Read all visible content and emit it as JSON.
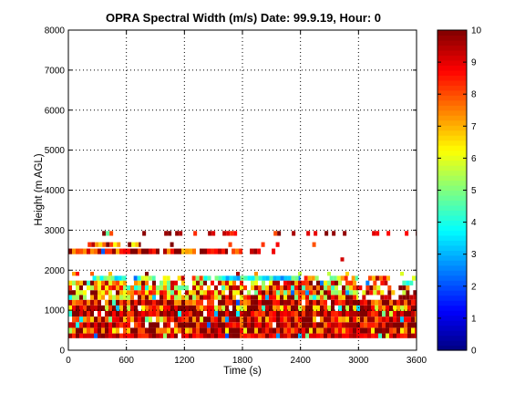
{
  "chart_data": {
    "type": "heatmap",
    "title": "OPRA Spectral Width (m/s)  Date: 99.9.19, Hour: 0",
    "xlabel": "Time (s)",
    "ylabel": "Height (m AGL)",
    "xlim": [
      0,
      3600
    ],
    "ylim": [
      0,
      8000
    ],
    "xticks": [
      "0",
      "600",
      "1200",
      "1800",
      "2400",
      "3000",
      "3600"
    ],
    "yticks": [
      "0",
      "1000",
      "2000",
      "3000",
      "4000",
      "5000",
      "6000",
      "7000",
      "8000"
    ],
    "grid": true,
    "colorbar": {
      "min": 0,
      "max": 10,
      "ticks": [
        "0",
        "1",
        "2",
        "3",
        "4",
        "5",
        "6",
        "7",
        "8",
        "9",
        "10"
      ],
      "colormap": "jet"
    },
    "bands": [
      {
        "y0": 300,
        "y1": 420,
        "x0": 0,
        "x1": 3600,
        "value": 9.3,
        "density": 0.97,
        "range": 1.2
      },
      {
        "y0": 420,
        "y1": 560,
        "x0": 0,
        "x1": 3600,
        "value": 8.8,
        "density": 0.96,
        "range": 3.0
      },
      {
        "y0": 560,
        "y1": 700,
        "x0": 0,
        "x1": 3600,
        "value": 9.2,
        "density": 0.97,
        "range": 1.6
      },
      {
        "y0": 700,
        "y1": 840,
        "x0": 0,
        "x1": 3600,
        "value": 9.0,
        "density": 0.96,
        "range": 2.4
      },
      {
        "y0": 840,
        "y1": 980,
        "x0": 0,
        "x1": 3600,
        "value": 9.3,
        "density": 0.97,
        "range": 1.4
      },
      {
        "y0": 980,
        "y1": 1120,
        "x0": 0,
        "x1": 3600,
        "value": 8.7,
        "density": 0.95,
        "range": 3.2
      },
      {
        "y0": 1120,
        "y1": 1260,
        "x0": 0,
        "x1": 3600,
        "value": 9.1,
        "density": 0.95,
        "range": 2.0
      },
      {
        "y0": 1260,
        "y1": 1380,
        "x0": 0,
        "x1": 3000,
        "value": 8.2,
        "density": 0.95,
        "range": 3.2
      },
      {
        "y0": 1260,
        "y1": 1380,
        "x0": 3000,
        "x1": 3600,
        "value": 9.4,
        "density": 0.85,
        "range": 1.0
      },
      {
        "y0": 1380,
        "y1": 1500,
        "x0": 0,
        "x1": 3000,
        "value": 7.6,
        "density": 0.95,
        "range": 3.0
      },
      {
        "y0": 1380,
        "y1": 1500,
        "x0": 3000,
        "x1": 3600,
        "value": 8.6,
        "density": 0.6,
        "range": 3.0
      },
      {
        "y0": 1500,
        "y1": 1620,
        "x0": 0,
        "x1": 3000,
        "value": 7.0,
        "density": 0.93,
        "range": 3.0
      },
      {
        "y0": 1500,
        "y1": 1620,
        "x0": 3000,
        "x1": 3600,
        "value": 8.0,
        "density": 0.45,
        "range": 3.0
      },
      {
        "y0": 1620,
        "y1": 1740,
        "x0": 0,
        "x1": 3000,
        "value": 7.8,
        "density": 0.8,
        "range": 3.0
      },
      {
        "y0": 1620,
        "y1": 1740,
        "x0": 3000,
        "x1": 3600,
        "value": 6.5,
        "density": 0.3,
        "range": 3.0
      },
      {
        "y0": 1740,
        "y1": 1860,
        "x0": 250,
        "x1": 600,
        "value": 4.2,
        "density": 0.85,
        "range": 1.6
      },
      {
        "y0": 1740,
        "y1": 1860,
        "x0": 600,
        "x1": 1400,
        "value": 6.8,
        "density": 0.4,
        "range": 3.0
      },
      {
        "y0": 1740,
        "y1": 1860,
        "x0": 1400,
        "x1": 2400,
        "value": 4.0,
        "density": 0.92,
        "range": 1.4
      },
      {
        "y0": 1740,
        "y1": 1860,
        "x0": 2400,
        "x1": 3000,
        "value": 6.6,
        "density": 0.88,
        "range": 2.2
      },
      {
        "y0": 1740,
        "y1": 1860,
        "x0": 3100,
        "x1": 3600,
        "value": 7.0,
        "density": 0.35,
        "range": 3.0
      },
      {
        "y0": 1860,
        "y1": 1960,
        "x0": 0,
        "x1": 3600,
        "value": 8.5,
        "density": 0.12,
        "range": 3.0
      },
      {
        "y0": 2400,
        "y1": 2540,
        "x0": 0,
        "x1": 1650,
        "value": 8.9,
        "density": 0.95,
        "range": 2.2
      },
      {
        "y0": 2400,
        "y1": 2540,
        "x0": 1650,
        "x1": 2200,
        "value": 9.0,
        "density": 0.35,
        "range": 1.5
      },
      {
        "y0": 2580,
        "y1": 2700,
        "x0": 200,
        "x1": 750,
        "value": 8.0,
        "density": 0.9,
        "range": 2.5
      },
      {
        "y0": 2580,
        "y1": 2700,
        "x0": 750,
        "x1": 3000,
        "value": 9.0,
        "density": 0.15,
        "range": 1.5
      },
      {
        "y0": 2860,
        "y1": 2980,
        "x0": 350,
        "x1": 3600,
        "value": 9.2,
        "density": 0.28,
        "range": 1.2
      },
      {
        "y0": 2220,
        "y1": 2320,
        "x0": 2700,
        "x1": 3100,
        "value": 9.0,
        "density": 0.2,
        "range": 1.2
      }
    ]
  }
}
